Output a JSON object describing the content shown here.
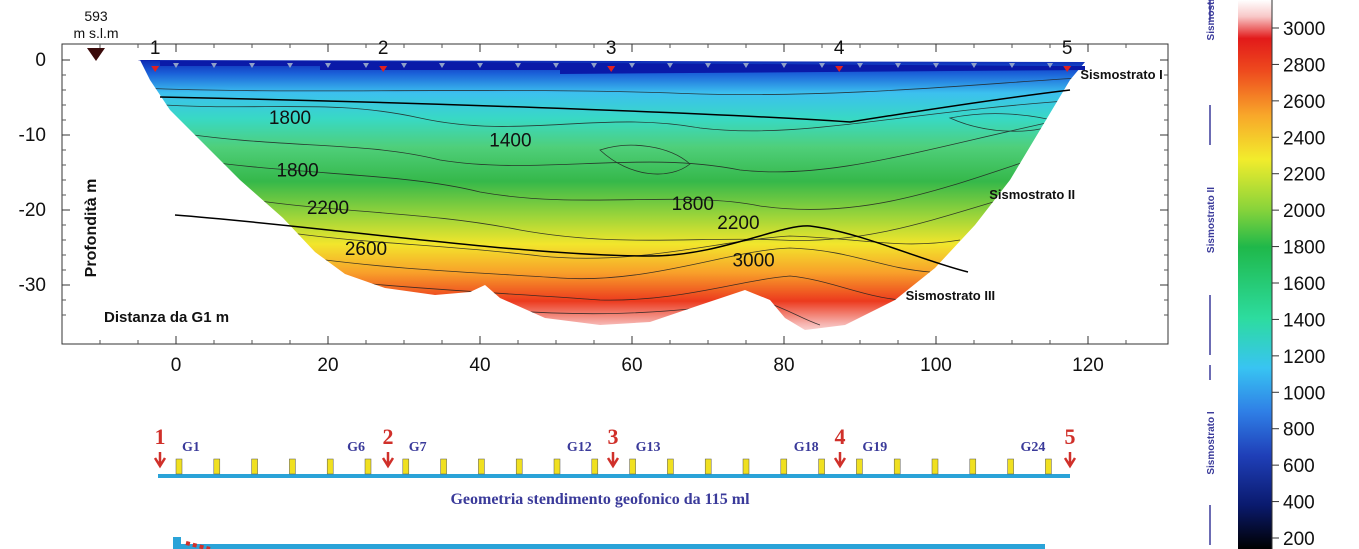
{
  "chart_data": {
    "type": "heatmap",
    "title": "",
    "elevation": {
      "value": "593",
      "unit": "m s.l.m"
    },
    "xlabel": "Distanza da G1   m",
    "ylabel": "Profondità  m",
    "xlim": [
      -11,
      127
    ],
    "ylim": [
      -37,
      3
    ],
    "x_ticks": [
      "0",
      "20",
      "40",
      "60",
      "80",
      "100",
      "120"
    ],
    "x_tick_values": [
      0,
      20,
      40,
      60,
      80,
      100,
      120
    ],
    "y_ticks": [
      "0",
      "-10",
      "-20",
      "-30"
    ],
    "y_tick_values": [
      0,
      -10,
      -20,
      -30
    ],
    "shotpoints": [
      {
        "label": "1",
        "x": -3
      },
      {
        "label": "2",
        "x": 27
      },
      {
        "label": "3",
        "x": 57
      },
      {
        "label": "4",
        "x": 87
      },
      {
        "label": "5",
        "x": 117
      }
    ],
    "contour_labels": [
      {
        "text": "1800",
        "x": 15,
        "y": -8.5
      },
      {
        "text": "1400",
        "x": 44,
        "y": -11.5
      },
      {
        "text": "1800",
        "x": 16,
        "y": -15.5
      },
      {
        "text": "2200",
        "x": 20,
        "y": -20.5
      },
      {
        "text": "2600",
        "x": 25,
        "y": -26
      },
      {
        "text": "1800",
        "x": 68,
        "y": -20
      },
      {
        "text": "2200",
        "x": 74,
        "y": -22.5
      },
      {
        "text": "3000",
        "x": 76,
        "y": -27.5
      }
    ],
    "layer_labels": [
      {
        "text": "Sismostrato I",
        "x": 119,
        "y": -2.5
      },
      {
        "text": "Sismostrato II",
        "x": 107,
        "y": -18.5
      },
      {
        "text": "Sismostrato III",
        "x": 96,
        "y": -32
      }
    ],
    "colorbar": {
      "ticks": [
        "3000",
        "2800",
        "2600",
        "2400",
        "2200",
        "2000",
        "1800",
        "1600",
        "1400",
        "1200",
        "1000",
        "800",
        "600",
        "400",
        "200"
      ],
      "range": [
        200,
        3200
      ],
      "stops": [
        "#000000",
        "#0a1a6e",
        "#1f3fb8",
        "#2f7fe6",
        "#38c4f2",
        "#2ddc9f",
        "#1fb84a",
        "#8ad43a",
        "#f2ec2c",
        "#f8a72a",
        "#ee4b1e",
        "#e21a1a",
        "#f8c8c8",
        "#ffffff"
      ],
      "bracket_labels": [
        "Sismostrato I",
        "Sismostrato II",
        "Sismostrato III"
      ]
    }
  },
  "geophone_array": {
    "caption": "Geometria stendimento geofonico da 115 ml",
    "labels": [
      "G1",
      "G6",
      "G7",
      "G12",
      "G13",
      "G18",
      "G19",
      "G24"
    ],
    "shotpoints": [
      "1",
      "2",
      "3",
      "4",
      "5"
    ],
    "colors": {
      "cable": "#2aa3d8",
      "geophone": "#f0e020",
      "shot": "#d0302a",
      "text": "#3a3a9a"
    }
  }
}
